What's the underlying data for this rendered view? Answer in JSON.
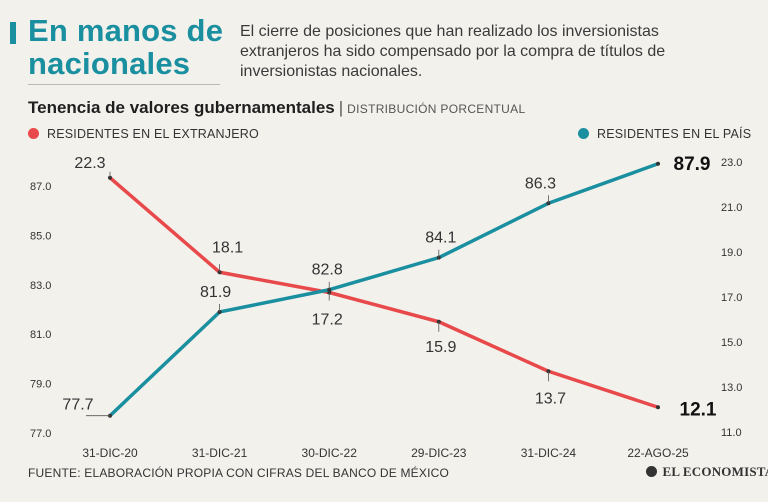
{
  "headline": "En manos de nacionales",
  "dek": "El cierre de posiciones que han realizado los inversionistas extranjeros ha sido compensado por la compra de títulos de inversionistas nacionales.",
  "chart_title": "Tenencia de valores gubernamentales",
  "chart_subtitle": "DISTRIBUCIÓN PORCENTUAL",
  "legend": {
    "foreign": "RESIDENTES EN EL EXTRANJERO",
    "domestic": "RESIDENTES EN EL PAÍS"
  },
  "colors": {
    "foreign": "#e8494a",
    "domestic": "#1a8fa0",
    "accent": "#1a8fa0"
  },
  "source": "FUENTE: ELABORACIÓN PROPIA CON CIFRAS DEL BANCO DE MÉXICO",
  "brand": "EL ECONOMISTA",
  "chart_data": {
    "type": "line",
    "title": "Tenencia de valores gubernamentales",
    "subtitle": "DISTRIBUCIÓN PORCENTUAL",
    "categories": [
      "31-DIC-20",
      "31-DIC-21",
      "30-DIC-22",
      "29-DIC-23",
      "31-DIC-24",
      "22-AGO-25"
    ],
    "series": [
      {
        "name": "RESIDENTES EN EL EXTRANJERO",
        "axis": "right",
        "values": [
          22.3,
          18.1,
          17.2,
          15.9,
          13.7,
          12.1
        ],
        "labels": [
          "22.3",
          "18.1",
          "17.2",
          "15.9",
          "13.7",
          "12.1"
        ]
      },
      {
        "name": "RESIDENTES EN EL PAÍS",
        "axis": "left",
        "values": [
          77.7,
          81.9,
          82.8,
          84.1,
          86.3,
          87.9
        ],
        "labels": [
          "77.7",
          "81.9",
          "82.8",
          "84.1",
          "86.3",
          "87.9"
        ]
      }
    ],
    "y_left": {
      "min": 77.0,
      "max": 87.0,
      "ticks": [
        "87.0",
        "85.0",
        "83.0",
        "81.0",
        "79.0",
        "77.0"
      ]
    },
    "y_right": {
      "min": 11.0,
      "max": 23.0,
      "ticks": [
        "23.0",
        "21.0",
        "19.0",
        "17.0",
        "15.0",
        "13.0",
        "11.0"
      ]
    },
    "grid": false
  }
}
